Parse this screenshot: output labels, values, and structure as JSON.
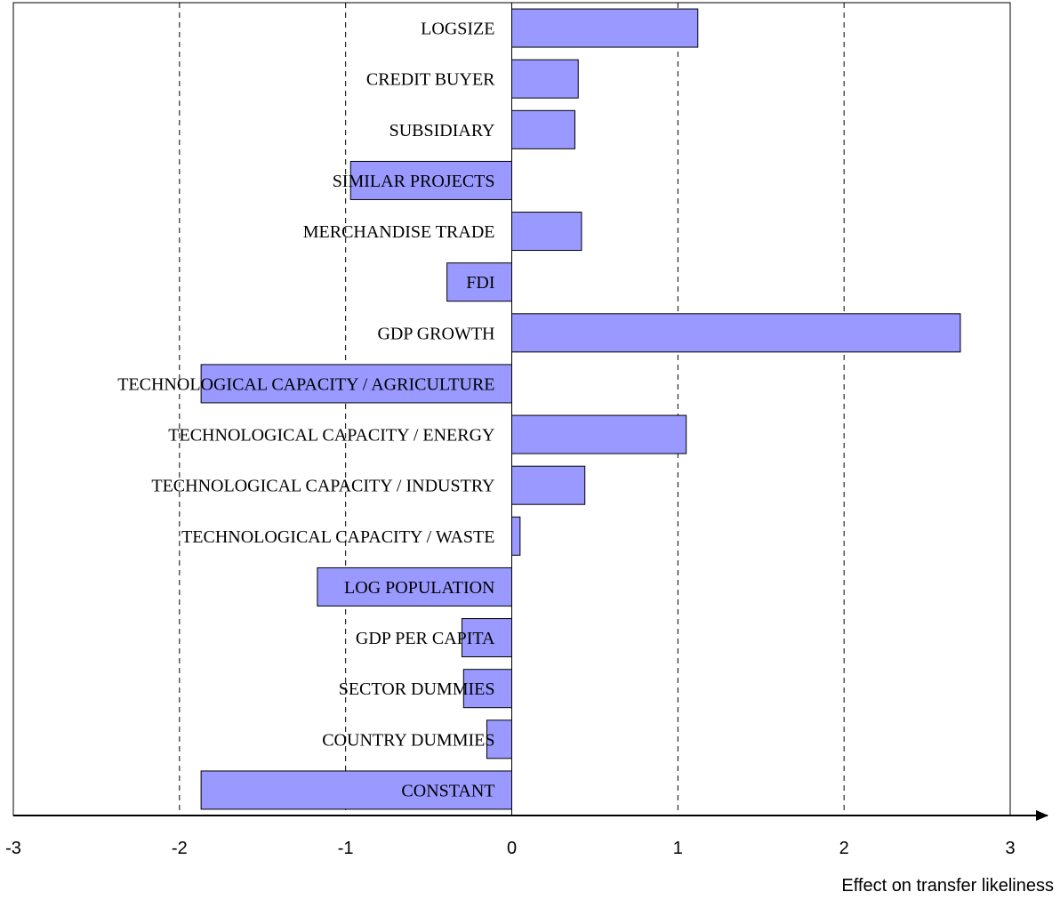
{
  "chart_data": {
    "type": "bar",
    "orientation": "horizontal",
    "categories": [
      "LOGSIZE",
      "CREDIT BUYER",
      "SUBSIDIARY",
      "SIMILAR PROJECTS",
      "MERCHANDISE TRADE",
      "FDI",
      "GDP GROWTH",
      "TECHNOLOGICAL CAPACITY / AGRICULTURE",
      "TECHNOLOGICAL CAPACITY / ENERGY",
      "TECHNOLOGICAL CAPACITY / INDUSTRY",
      "TECHNOLOGICAL CAPACITY / WASTE",
      "LOG POPULATION",
      "GDP PER CAPITA",
      "SECTOR DUMMIES",
      "COUNTRY DUMMIES",
      "CONSTANT"
    ],
    "values": [
      1.12,
      0.4,
      0.38,
      -0.97,
      0.42,
      -0.39,
      2.7,
      -1.87,
      1.05,
      0.44,
      0.05,
      -1.17,
      -0.3,
      -0.29,
      -0.15,
      -1.87
    ],
    "xlim": [
      -3,
      3
    ],
    "xticks": [
      -3,
      -2,
      -1,
      0,
      1,
      2,
      3
    ],
    "xlabel": "Effect on transfer likeliness",
    "title": "",
    "ylabel": "",
    "grid": "vertical dashed",
    "bar_color": "#9999ff",
    "bar_border_color": "#000000"
  }
}
